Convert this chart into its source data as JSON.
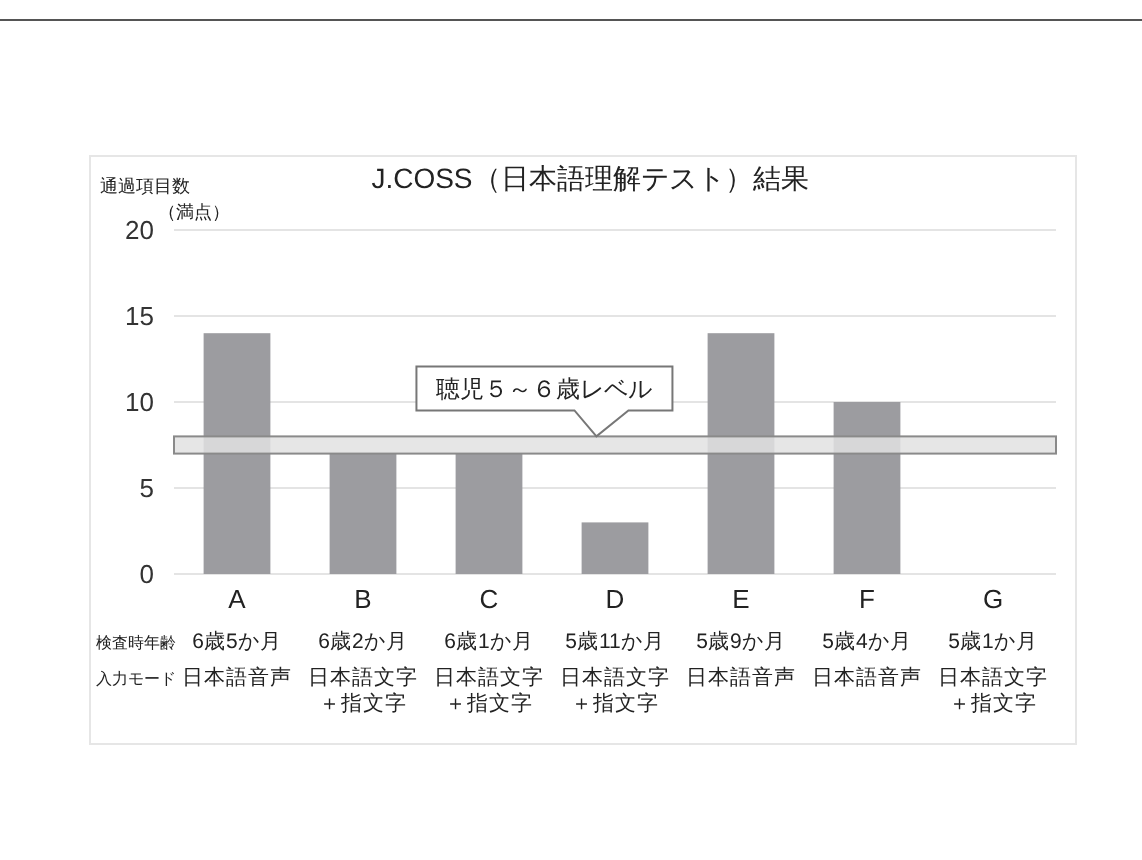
{
  "chart_data": {
    "type": "bar",
    "title": "J.COSS（日本語理解テスト）結果",
    "ylabel": "通過項目数",
    "categories": [
      "A",
      "B",
      "C",
      "D",
      "E",
      "F",
      "G"
    ],
    "values": [
      14,
      7,
      7,
      3,
      14,
      10,
      0
    ],
    "color": "#9c9ca0",
    "ylim": [
      0,
      20
    ],
    "yticks": [
      0,
      5,
      10,
      15,
      20
    ],
    "grid": "y",
    "bands": [
      {
        "axis": "y",
        "from": 7,
        "to": 8,
        "label": "聴児５～６歳レベル",
        "color": "#e2e2e2"
      }
    ],
    "annotations": [
      "（満点）",
      "検査時年齢",
      "6歳5か月",
      "6歳2か月",
      "6歳1か月",
      "5歳11か月",
      "5歳9か月",
      "5歳4か月",
      "5歳1か月",
      "入力モード",
      "日本語音声",
      "日本語文字＋指文字",
      "日本語文字＋指文字",
      "日本語文字＋指文字",
      "日本語音声",
      "日本語音声",
      "日本語文字＋指文字"
    ]
  }
}
